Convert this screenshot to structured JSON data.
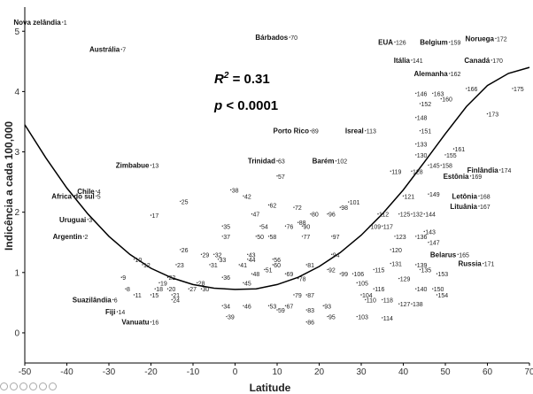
{
  "chart_data": {
    "type": "scatter",
    "xlabel": "Latitude",
    "ylabel": "Indicência a cada 100,000",
    "xlim": [
      -50,
      70
    ],
    "ylim": [
      -0.5,
      5.4
    ],
    "xticks": [
      -50,
      -40,
      -30,
      -20,
      -10,
      0,
      10,
      20,
      30,
      40,
      50,
      60,
      70
    ],
    "yticks": [
      0,
      1,
      2,
      3,
      4,
      5
    ],
    "grid": false,
    "annotations": {
      "r2_label": "R",
      "r2_sup": "2",
      "r2_value": " = 0.31",
      "p_label": "p",
      "p_value": " < 0.0001"
    },
    "fit_curve": {
      "points": [
        [
          -50,
          3.45
        ],
        [
          -45,
          2.9
        ],
        [
          -40,
          2.4
        ],
        [
          -35,
          1.97
        ],
        [
          -30,
          1.6
        ],
        [
          -25,
          1.3
        ],
        [
          -20,
          1.07
        ],
        [
          -15,
          0.91
        ],
        [
          -10,
          0.8
        ],
        [
          -5,
          0.74
        ],
        [
          0,
          0.72
        ],
        [
          5,
          0.73
        ],
        [
          10,
          0.8
        ],
        [
          15,
          0.92
        ],
        [
          20,
          1.1
        ],
        [
          25,
          1.33
        ],
        [
          30,
          1.62
        ],
        [
          35,
          1.97
        ],
        [
          40,
          2.37
        ],
        [
          45,
          2.83
        ],
        [
          50,
          3.3
        ],
        [
          55,
          3.75
        ],
        [
          60,
          4.1
        ],
        [
          65,
          4.3
        ],
        [
          70,
          4.4
        ]
      ]
    },
    "points": [
      {
        "label": "1",
        "name": "Nova zelândia",
        "x": -41,
        "y": 5.15
      },
      {
        "label": "7",
        "name": "Austrália",
        "x": -27,
        "y": 4.7
      },
      {
        "label": "70",
        "name": "Bárbados",
        "x": 13,
        "y": 4.9
      },
      {
        "label": "126",
        "name": "EUA",
        "x": 38,
        "y": 4.82
      },
      {
        "label": "159",
        "name": "Belgium",
        "x": 51,
        "y": 4.82
      },
      {
        "label": "172",
        "name": "Noruega",
        "x": 62,
        "y": 4.88
      },
      {
        "label": "141",
        "name": "Itália",
        "x": 42,
        "y": 4.52
      },
      {
        "label": "170",
        "name": "Canadá",
        "x": 61,
        "y": 4.52
      },
      {
        "label": "162",
        "name": "Alemanha",
        "x": 51,
        "y": 4.3
      },
      {
        "label": "146",
        "name": "",
        "x": 43,
        "y": 3.97
      },
      {
        "label": "163",
        "name": "",
        "x": 47,
        "y": 3.97
      },
      {
        "label": "166",
        "name": "",
        "x": 55,
        "y": 4.05
      },
      {
        "label": "175",
        "name": "",
        "x": 66,
        "y": 4.05
      },
      {
        "label": "160",
        "name": "",
        "x": 49,
        "y": 3.88
      },
      {
        "label": "152",
        "name": "",
        "x": 44,
        "y": 3.8
      },
      {
        "label": "173",
        "name": "",
        "x": 60,
        "y": 3.63
      },
      {
        "label": "148",
        "name": "",
        "x": 43,
        "y": 3.57
      },
      {
        "label": "89",
        "name": "Porto Rico",
        "x": 18,
        "y": 3.35
      },
      {
        "label": "113",
        "name": "Isreal",
        "x": 31,
        "y": 3.35
      },
      {
        "label": "151",
        "name": "",
        "x": 44,
        "y": 3.35
      },
      {
        "label": "133",
        "name": "",
        "x": 43,
        "y": 3.13
      },
      {
        "label": "161",
        "name": "",
        "x": 52,
        "y": 3.05
      },
      {
        "label": "130",
        "name": "",
        "x": 43,
        "y": 2.95
      },
      {
        "label": "155",
        "name": "",
        "x": 50,
        "y": 2.95
      },
      {
        "label": "13",
        "name": "Zimbabue",
        "x": -20,
        "y": 2.78
      },
      {
        "label": "63",
        "name": "Trinidad",
        "x": 10,
        "y": 2.85
      },
      {
        "label": "102",
        "name": "Barém",
        "x": 24,
        "y": 2.85
      },
      {
        "label": "145",
        "name": "",
        "x": 46,
        "y": 2.78
      },
      {
        "label": "158",
        "name": "",
        "x": 49,
        "y": 2.78
      },
      {
        "label": "119",
        "name": "",
        "x": 37,
        "y": 2.68
      },
      {
        "label": "128",
        "name": "",
        "x": 42,
        "y": 2.68
      },
      {
        "label": "174",
        "name": "Finlândia",
        "x": 63,
        "y": 2.7
      },
      {
        "label": "57",
        "name": "",
        "x": 10,
        "y": 2.6
      },
      {
        "label": "169",
        "name": "Estônia",
        "x": 56,
        "y": 2.6
      },
      {
        "label": "4",
        "name": "Chile",
        "x": -33,
        "y": 2.35
      },
      {
        "label": "5",
        "name": "Africa do sul",
        "x": -33,
        "y": 2.27
      },
      {
        "label": "38",
        "name": "",
        "x": -1,
        "y": 2.37
      },
      {
        "label": "42",
        "name": "",
        "x": 2,
        "y": 2.27
      },
      {
        "label": "121",
        "name": "",
        "x": 40,
        "y": 2.27
      },
      {
        "label": "149",
        "name": "",
        "x": 46,
        "y": 2.3
      },
      {
        "label": "168",
        "name": "Letônia",
        "x": 58,
        "y": 2.27
      },
      {
        "label": "25",
        "name": "",
        "x": -13,
        "y": 2.18
      },
      {
        "label": "62",
        "name": "",
        "x": 8,
        "y": 2.12
      },
      {
        "label": "72",
        "name": "",
        "x": 14,
        "y": 2.08
      },
      {
        "label": "101",
        "name": "",
        "x": 27,
        "y": 2.17
      },
      {
        "label": "98",
        "name": "",
        "x": 25,
        "y": 2.08
      },
      {
        "label": "167",
        "name": "Lituânia",
        "x": 58,
        "y": 2.1
      },
      {
        "label": "17",
        "name": "",
        "x": -20,
        "y": 1.95
      },
      {
        "label": "47",
        "name": "",
        "x": 4,
        "y": 1.97
      },
      {
        "label": "80",
        "name": "",
        "x": 18,
        "y": 1.97
      },
      {
        "label": "96",
        "name": "",
        "x": 22,
        "y": 1.97
      },
      {
        "label": "112",
        "name": "",
        "x": 34,
        "y": 1.97
      },
      {
        "label": "125",
        "name": "",
        "x": 39,
        "y": 1.97
      },
      {
        "label": "132",
        "name": "",
        "x": 42,
        "y": 1.97
      },
      {
        "label": "144",
        "name": "",
        "x": 45,
        "y": 1.97
      },
      {
        "label": "3",
        "name": "Uruguai",
        "x": -35,
        "y": 1.88
      },
      {
        "label": "88",
        "name": "",
        "x": 15,
        "y": 1.83
      },
      {
        "label": "35",
        "name": "",
        "x": -3,
        "y": 1.77
      },
      {
        "label": "54",
        "name": "",
        "x": 6,
        "y": 1.77
      },
      {
        "label": "76",
        "name": "",
        "x": 12,
        "y": 1.77
      },
      {
        "label": "90",
        "name": "",
        "x": 16,
        "y": 1.77
      },
      {
        "label": "109",
        "name": "",
        "x": 32,
        "y": 1.77
      },
      {
        "label": "117",
        "name": "",
        "x": 35,
        "y": 1.77
      },
      {
        "label": "143",
        "name": "",
        "x": 45,
        "y": 1.68
      },
      {
        "label": "2",
        "name": "Argentin",
        "x": -36,
        "y": 1.6
      },
      {
        "label": "37",
        "name": "",
        "x": -3,
        "y": 1.6
      },
      {
        "label": "50",
        "name": "",
        "x": 5,
        "y": 1.6
      },
      {
        "label": "58",
        "name": "",
        "x": 8,
        "y": 1.6
      },
      {
        "label": "77",
        "name": "",
        "x": 16,
        "y": 1.6
      },
      {
        "label": "97",
        "name": "",
        "x": 23,
        "y": 1.6
      },
      {
        "label": "123",
        "name": "",
        "x": 38,
        "y": 1.6
      },
      {
        "label": "136",
        "name": "",
        "x": 43,
        "y": 1.6
      },
      {
        "label": "120",
        "name": "",
        "x": 37,
        "y": 1.38
      },
      {
        "label": "147",
        "name": "",
        "x": 46,
        "y": 1.5
      },
      {
        "label": "26",
        "name": "",
        "x": -13,
        "y": 1.38
      },
      {
        "label": "29",
        "name": "",
        "x": -8,
        "y": 1.3
      },
      {
        "label": "32",
        "name": "",
        "x": -5,
        "y": 1.3
      },
      {
        "label": "43",
        "name": "",
        "x": 3,
        "y": 1.3
      },
      {
        "label": "94",
        "name": "",
        "x": 23,
        "y": 1.3
      },
      {
        "label": "165",
        "name": "Belarus",
        "x": 53,
        "y": 1.3
      },
      {
        "label": "10",
        "name": "",
        "x": -24,
        "y": 1.22
      },
      {
        "label": "33",
        "name": "",
        "x": -4,
        "y": 1.22
      },
      {
        "label": "44",
        "name": "",
        "x": 3,
        "y": 1.22
      },
      {
        "label": "56",
        "name": "",
        "x": 9,
        "y": 1.22
      },
      {
        "label": "131",
        "name": "",
        "x": 37,
        "y": 1.15
      },
      {
        "label": "171",
        "name": "Russia",
        "x": 59,
        "y": 1.15
      },
      {
        "label": "12",
        "name": "",
        "x": -22,
        "y": 1.13
      },
      {
        "label": "23",
        "name": "",
        "x": -14,
        "y": 1.13
      },
      {
        "label": "31",
        "name": "",
        "x": -6,
        "y": 1.13
      },
      {
        "label": "41",
        "name": "",
        "x": 1,
        "y": 1.13
      },
      {
        "label": "60",
        "name": "",
        "x": 9,
        "y": 1.13
      },
      {
        "label": "81",
        "name": "",
        "x": 17,
        "y": 1.13
      },
      {
        "label": "139",
        "name": "",
        "x": 43,
        "y": 1.13
      },
      {
        "label": "51",
        "name": "",
        "x": 7,
        "y": 1.05
      },
      {
        "label": "92",
        "name": "",
        "x": 22,
        "y": 1.05
      },
      {
        "label": "115",
        "name": "",
        "x": 33,
        "y": 1.05
      },
      {
        "label": "135",
        "name": "",
        "x": 44,
        "y": 1.05
      },
      {
        "label": "48",
        "name": "",
        "x": 4,
        "y": 0.98
      },
      {
        "label": "69",
        "name": "",
        "x": 12,
        "y": 0.98
      },
      {
        "label": "99",
        "name": "",
        "x": 25,
        "y": 0.98
      },
      {
        "label": "106",
        "name": "",
        "x": 28,
        "y": 0.98
      },
      {
        "label": "153",
        "name": "",
        "x": 48,
        "y": 0.98
      },
      {
        "label": "9",
        "name": "",
        "x": -27,
        "y": 0.92
      },
      {
        "label": "22",
        "name": "",
        "x": -16,
        "y": 0.92
      },
      {
        "label": "36",
        "name": "",
        "x": -3,
        "y": 0.92
      },
      {
        "label": "78",
        "name": "",
        "x": 15,
        "y": 0.9
      },
      {
        "label": "129",
        "name": "",
        "x": 39,
        "y": 0.9
      },
      {
        "label": "19",
        "name": "",
        "x": -18,
        "y": 0.83
      },
      {
        "label": "28",
        "name": "",
        "x": -9,
        "y": 0.83
      },
      {
        "label": "45",
        "name": "",
        "x": 2,
        "y": 0.83
      },
      {
        "label": "105",
        "name": "",
        "x": 29,
        "y": 0.83
      },
      {
        "label": "8",
        "name": "",
        "x": -26,
        "y": 0.73
      },
      {
        "label": "18",
        "name": "",
        "x": -19,
        "y": 0.73
      },
      {
        "label": "20",
        "name": "",
        "x": -16,
        "y": 0.73
      },
      {
        "label": "27",
        "name": "",
        "x": -11,
        "y": 0.73
      },
      {
        "label": "30",
        "name": "",
        "x": -8,
        "y": 0.73
      },
      {
        "label": "116",
        "name": "",
        "x": 33,
        "y": 0.73
      },
      {
        "label": "140",
        "name": "",
        "x": 43,
        "y": 0.73
      },
      {
        "label": "150",
        "name": "",
        "x": 47,
        "y": 0.73
      },
      {
        "label": "11",
        "name": "",
        "x": -24,
        "y": 0.63
      },
      {
        "label": "15",
        "name": "",
        "x": -20,
        "y": 0.63
      },
      {
        "label": "21",
        "name": "",
        "x": -15,
        "y": 0.63
      },
      {
        "label": "79",
        "name": "",
        "x": 14,
        "y": 0.63
      },
      {
        "label": "87",
        "name": "",
        "x": 17,
        "y": 0.63
      },
      {
        "label": "104",
        "name": "",
        "x": 30,
        "y": 0.63
      },
      {
        "label": "154",
        "name": "",
        "x": 48,
        "y": 0.63
      },
      {
        "label": "6",
        "name": "Suazilândia",
        "x": -29,
        "y": 0.55
      },
      {
        "label": "24",
        "name": "",
        "x": -15,
        "y": 0.55
      },
      {
        "label": "110",
        "name": "",
        "x": 31,
        "y": 0.55
      },
      {
        "label": "118",
        "name": "",
        "x": 35,
        "y": 0.55
      },
      {
        "label": "127",
        "name": "",
        "x": 39,
        "y": 0.48
      },
      {
        "label": "138",
        "name": "",
        "x": 42,
        "y": 0.48
      },
      {
        "label": "34",
        "name": "",
        "x": -3,
        "y": 0.45
      },
      {
        "label": "46",
        "name": "",
        "x": 2,
        "y": 0.45
      },
      {
        "label": "53",
        "name": "",
        "x": 8,
        "y": 0.45
      },
      {
        "label": "67",
        "name": "",
        "x": 12,
        "y": 0.45
      },
      {
        "label": "93",
        "name": "",
        "x": 21,
        "y": 0.45
      },
      {
        "label": "59",
        "name": "",
        "x": 10,
        "y": 0.38
      },
      {
        "label": "83",
        "name": "",
        "x": 17,
        "y": 0.38
      },
      {
        "label": "14",
        "name": "Fiji",
        "x": -28,
        "y": 0.35
      },
      {
        "label": "39",
        "name": "",
        "x": -2,
        "y": 0.27
      },
      {
        "label": "95",
        "name": "",
        "x": 22,
        "y": 0.27
      },
      {
        "label": "103",
        "name": "",
        "x": 29,
        "y": 0.27
      },
      {
        "label": "114",
        "name": "",
        "x": 35,
        "y": 0.25
      },
      {
        "label": "86",
        "name": "",
        "x": 17,
        "y": 0.18
      },
      {
        "label": "16",
        "name": "Vanuatu",
        "x": -20,
        "y": 0.18
      }
    ]
  },
  "ui": {
    "icons": [
      "cc-icon",
      "attribution-icon",
      "edit-icon",
      "share-icon",
      "copy-icon",
      "circle-icon"
    ]
  }
}
